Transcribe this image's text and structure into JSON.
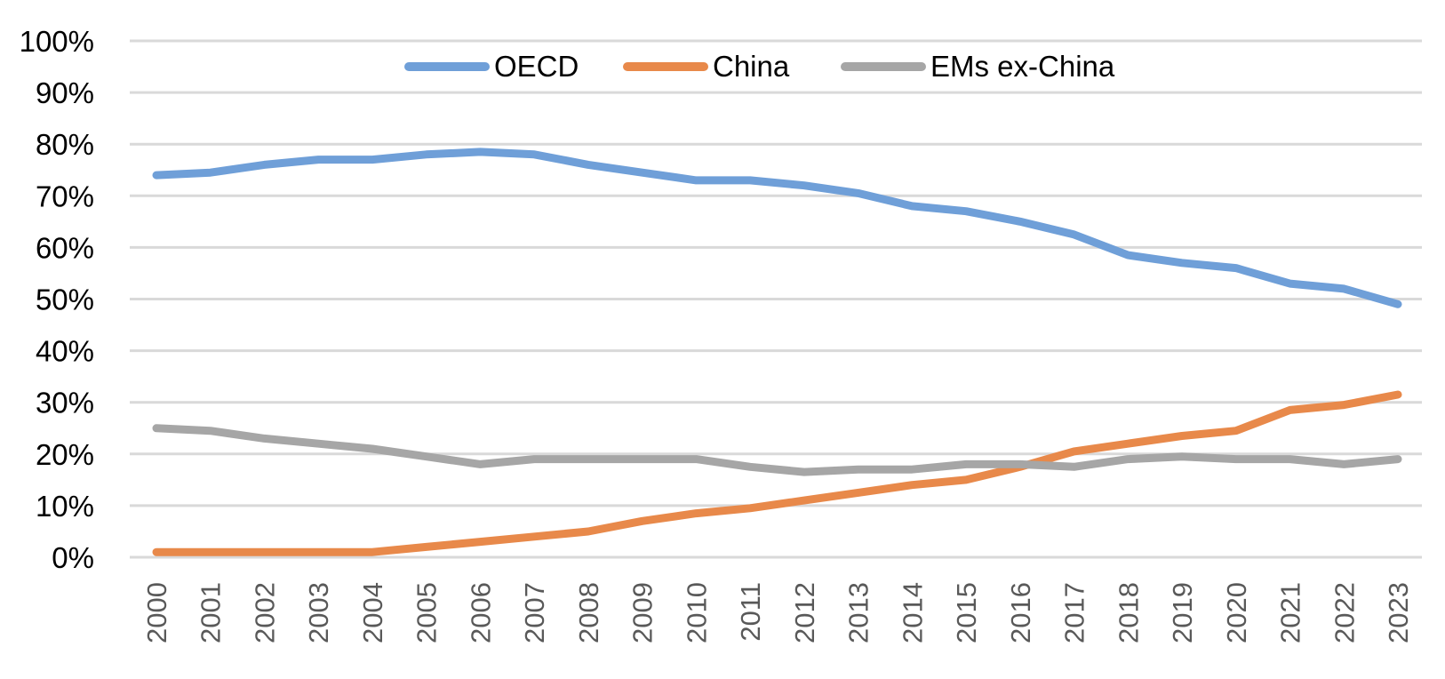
{
  "chart_data": {
    "type": "line",
    "title": "",
    "xlabel": "",
    "ylabel": "",
    "x": [
      "2000",
      "2001",
      "2002",
      "2003",
      "2004",
      "2005",
      "2006",
      "2007",
      "2008",
      "2009",
      "2010",
      "2011",
      "2012",
      "2013",
      "2014",
      "2015",
      "2016",
      "2017",
      "2018",
      "2019",
      "2020",
      "2021",
      "2022",
      "2023"
    ],
    "ylim": [
      0,
      100
    ],
    "yticks": [
      0,
      10,
      20,
      30,
      40,
      50,
      60,
      70,
      80,
      90,
      100
    ],
    "ytick_labels": [
      "0%",
      "10%",
      "20%",
      "30%",
      "40%",
      "50%",
      "60%",
      "70%",
      "80%",
      "90%",
      "100%"
    ],
    "grid": true,
    "legend_position": "top",
    "series": [
      {
        "name": "OECD",
        "color": "#6F9FD8",
        "values": [
          74,
          74.5,
          76,
          77,
          77,
          78,
          78.5,
          78,
          76,
          74.5,
          73,
          73,
          72,
          70.5,
          68,
          67,
          65,
          62.5,
          58.5,
          57,
          56,
          53,
          52,
          49
        ]
      },
      {
        "name": "China",
        "color": "#E8894A",
        "values": [
          1,
          1,
          1,
          1,
          1,
          2,
          3,
          4,
          5,
          7,
          8.5,
          9.5,
          11,
          12.5,
          14,
          15,
          17.5,
          20.5,
          22,
          23.5,
          24.5,
          28.5,
          29.5,
          31.5
        ]
      },
      {
        "name": "EMs ex-China",
        "color": "#A6A6A6",
        "values": [
          25,
          24.5,
          23,
          22,
          21,
          19.5,
          18,
          19,
          19,
          19,
          19,
          17.5,
          16.5,
          17,
          17,
          18,
          18,
          17.5,
          19,
          19.5,
          19,
          19,
          18,
          19
        ]
      }
    ]
  }
}
